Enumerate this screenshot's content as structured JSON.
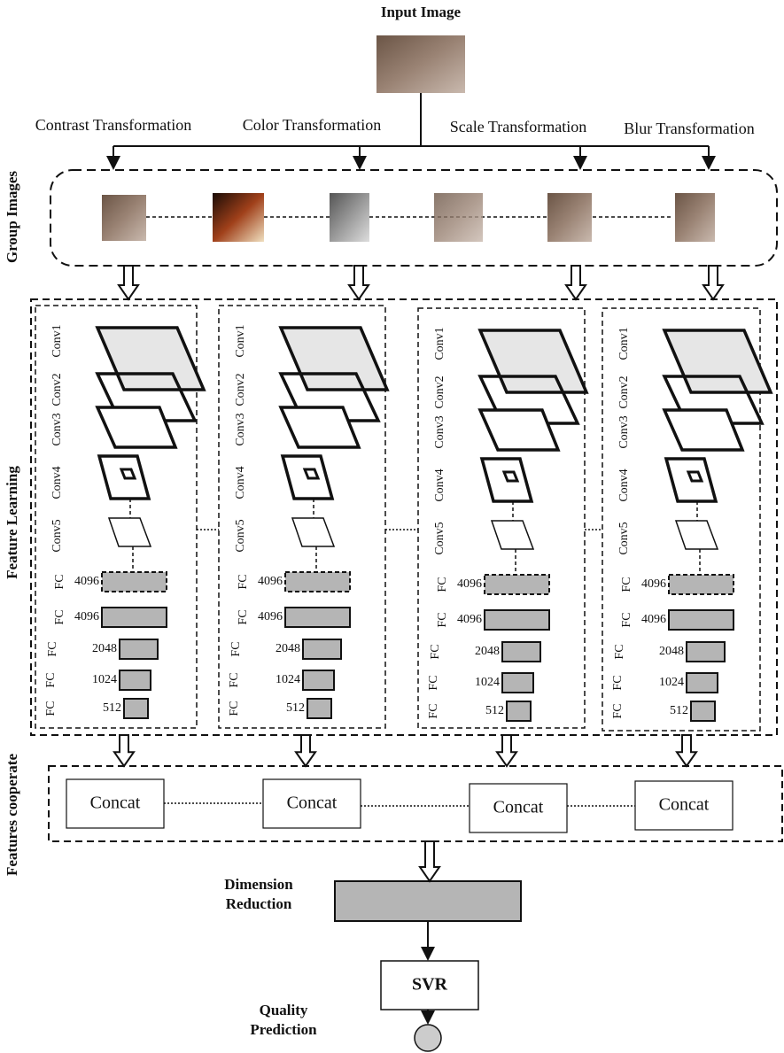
{
  "input": {
    "title": "Input Image"
  },
  "transformations": [
    "Contrast Transformation",
    "Color Transformation",
    "Scale Transformation",
    "Blur Transformation"
  ],
  "stages": {
    "group": "Group Images",
    "learning": "Feature Learning",
    "cooperate": "Features cooperate"
  },
  "columns": [
    {
      "convs": [
        "Conv1",
        "Conv2",
        "Conv3",
        "Conv4",
        "Conv5"
      ],
      "fc": [
        {
          "label": "FC",
          "size": "4096"
        },
        {
          "label": "FC",
          "size": "4096"
        },
        {
          "label": "FC",
          "size": "2048"
        },
        {
          "label": "FC",
          "size": "1024"
        },
        {
          "label": "FC",
          "size": "512"
        }
      ]
    },
    {
      "convs": [
        "Conv1",
        "Conv2",
        "Conv3",
        "Conv4",
        "Conv5"
      ],
      "fc": [
        {
          "label": "FC",
          "size": "4096"
        },
        {
          "label": "FC",
          "size": "4096"
        },
        {
          "label": "FC",
          "size": "2048"
        },
        {
          "label": "FC",
          "size": "1024"
        },
        {
          "label": "FC",
          "size": "512"
        }
      ]
    },
    {
      "convs": [
        "Conv1",
        "Conv2",
        "Conv3",
        "Conv4",
        "Conv5"
      ],
      "fc": [
        {
          "label": "FC",
          "size": "4096"
        },
        {
          "label": "FC",
          "size": "4096"
        },
        {
          "label": "FC",
          "size": "2048"
        },
        {
          "label": "FC",
          "size": "1024"
        },
        {
          "label": "FC",
          "size": "512"
        }
      ]
    },
    {
      "convs": [
        "Conv1",
        "Conv2",
        "Conv3",
        "Conv4",
        "Conv5"
      ],
      "fc": [
        {
          "label": "FC",
          "size": "4096"
        },
        {
          "label": "FC",
          "size": "4096"
        },
        {
          "label": "FC",
          "size": "2048"
        },
        {
          "label": "FC",
          "size": "1024"
        },
        {
          "label": "FC",
          "size": "512"
        }
      ]
    }
  ],
  "concat": [
    "Concat",
    "Concat",
    "Concat",
    "Concat"
  ],
  "dimension_reduction": [
    "Dimension",
    "Reduction"
  ],
  "svr": "SVR",
  "quality_prediction": [
    "Quality",
    "Prediction"
  ]
}
